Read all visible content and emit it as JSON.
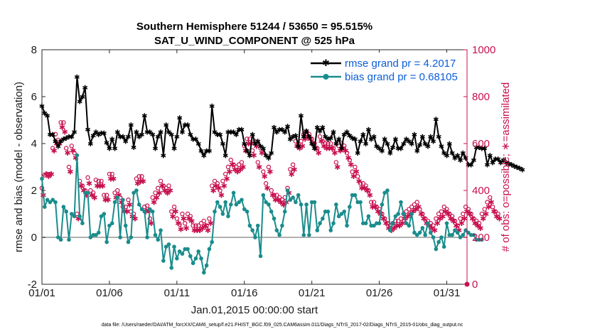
{
  "title_line1": "Southern Hemisphere 51244 / 53650 = 95.515%",
  "title_line2": "SAT_U_WIND_COMPONENT @ 525 hPa",
  "footer": "data file: /Users/raeder/DAI/ATM_forcXX/CAM6_setup/f.e21.FHIST_BGC.f09_025.CAM6assim.011/Diags_NTrS_2017-02/Diags_NTrS_2015-01/obs_diag_output.nc",
  "colors": {
    "rmse": "#000000",
    "bias": "#1a8c8c",
    "obs": "#c8104e",
    "legend_text": "#0b5ed7",
    "zero": "#b0b0b0"
  },
  "chart_data": {
    "type": "line",
    "xlabel": "Jan.01,2015 00:00:00 start",
    "ylabel": "rmse and bias (model - observation)",
    "ylabel_right": "# of obs: o=possible; ∗=assimilated",
    "xlim": [
      0,
      31.5
    ],
    "ylim": [
      -2,
      8
    ],
    "ylim_right": [
      0,
      1000
    ],
    "x_ticks": [
      0,
      5,
      10,
      15,
      20,
      25,
      30
    ],
    "x_ticklabels": [
      "01/01",
      "01/06",
      "01/11",
      "01/16",
      "01/21",
      "01/26",
      "01/31"
    ],
    "y_ticks": [
      -2,
      0,
      2,
      4,
      6,
      8
    ],
    "y_ticklabels": [
      "-2",
      "0",
      "2",
      "4",
      "6",
      "8"
    ],
    "y_right_ticks": [
      0,
      200,
      400,
      600,
      800,
      1000
    ],
    "y_right_ticklabels": [
      "0",
      "200",
      "400",
      "600",
      "800",
      "1000"
    ],
    "series": [
      {
        "name": "rmse grand pr = 4.2017",
        "axis": "left",
        "marker": "*",
        "values": [
          5.6,
          5.3,
          5.2,
          4.4,
          4.4,
          4.1,
          3.9,
          4.1,
          4.2,
          4.25,
          4.3,
          4.3,
          4.5,
          6.85,
          5.8,
          6.0,
          6.4,
          4.6,
          4.0,
          4.35,
          4.5,
          4.4,
          4.45,
          4.45,
          4.05,
          3.8,
          4.2,
          3.8,
          4.5,
          4.3,
          4.3,
          4.1,
          4.3,
          4.8,
          3.85,
          4.5,
          4.3,
          4.4,
          5.2,
          4.5,
          4.5,
          4.4,
          3.8,
          4.3,
          4.5,
          3.5,
          4.8,
          4.5,
          4.4,
          3.8,
          4.3,
          5.1,
          4.5,
          4.8,
          4.8,
          4.4,
          4.2,
          4.2,
          4.0,
          3.7,
          3.5,
          3.7,
          3.7,
          5.6,
          4.5,
          4.4,
          4.4,
          4.0,
          3.5,
          4.5,
          4.5,
          4.5,
          4.4,
          4.6,
          4.6,
          4.0,
          3.7,
          3.5,
          4.4,
          4.0,
          4.1,
          3.9,
          3.8,
          3.5,
          3.4,
          3.6,
          4.7,
          4.5,
          4.6,
          4.6,
          4.5,
          4.75,
          4.2,
          4.3,
          4.35,
          3.9,
          5.2,
          4.3,
          4.55,
          4.3,
          4.0,
          3.8,
          4.7,
          4.55,
          4.7,
          4.3,
          4.2,
          4.25,
          4.5,
          4.0,
          4.2,
          3.8,
          4.4,
          4.5,
          4.35,
          4.25,
          4.2,
          3.6,
          4.1,
          4.4,
          4.0,
          4.6,
          4.2,
          4.3,
          3.9,
          3.8,
          3.7,
          4.2,
          4.0,
          3.6,
          3.85,
          4.2,
          3.8,
          3.8,
          4.0,
          4.2,
          4.1,
          4.0,
          4.4,
          3.7,
          3.95,
          4.3,
          4.0,
          3.9,
          4.3,
          4.1,
          5.05,
          4.3,
          3.9,
          3.6,
          3.5,
          4.0,
          3.6,
          3.4,
          3.5,
          3.3,
          3.6,
          3.4,
          3.1,
          3.1,
          3.3,
          3.85,
          3.85,
          3.8,
          3.8,
          3.1,
          3.5,
          3.2,
          3.35,
          3.35,
          3.2,
          3.3,
          3.2,
          3.15,
          3.1,
          3.05,
          3.0,
          2.95,
          2.9
        ],
        "x_step": 0.2
      },
      {
        "name": "bias grand pr = 0.68105",
        "axis": "left",
        "marker": "o",
        "values": [
          2.5,
          1.3,
          1.6,
          1.5,
          1.6,
          1.5,
          0.0,
          -0.1,
          1.3,
          1.1,
          -0.1,
          1.0,
          0.9,
          3.5,
          0.9,
          0.6,
          1.9,
          1.9,
          0.0,
          0.1,
          0.1,
          0.2,
          0.9,
          1.0,
          -0.2,
          0.5,
          0.6,
          1.5,
          1.7,
          0.0,
          1.6,
          0.5,
          -0.2,
          0.0,
          1.9,
          2.0,
          1.4,
          1.2,
          1.1,
          0.0,
          1.2,
          1.1,
          0.1,
          -0.1,
          0.3,
          -1.0,
          -0.4,
          -0.3,
          -1.3,
          -0.4,
          -0.9,
          -0.6,
          -0.7,
          -0.5,
          -0.5,
          -0.8,
          -1.1,
          -0.9,
          -0.6,
          -0.9,
          -1.5,
          -1.2,
          -0.5,
          -0.2,
          1.1,
          1.5,
          1.3,
          1.0,
          1.5,
          0.9,
          1.4,
          1.9,
          1.4,
          1.5,
          1.6,
          1.2,
          1.1,
          0.5,
          0.3,
          0.0,
          0.5,
          -0.8,
          1.8,
          1.5,
          1.4,
          1.1,
          0.8,
          0.3,
          0.1,
          0.5,
          1.1,
          2.0,
          1.6,
          1.7,
          1.5,
          1.8,
          1.4,
          0.1,
          1.4,
          0.1,
          1.5,
          1.5,
          0.3,
          0.6,
          0.8,
          1.1,
          1.1,
          0.3,
          0.6,
          1.4,
          0.9,
          1.0,
          1.1,
          0.5,
          1.3,
          1.8,
          1.8,
          1.5,
          1.5,
          0.6,
          0.6,
          0.9,
          0.5,
          0.5,
          0.6,
          0.6,
          1.4,
          1.9,
          2.0,
          0.3,
          0.6,
          0.9,
          1.0,
          1.5,
          1.0,
          0.6,
          0.5,
          1.0,
          0.2,
          0.1,
          0.2,
          0.4,
          0.1,
          0.6,
          0.2,
          0.0,
          -0.5,
          -0.2,
          0.0,
          -0.4,
          0.6,
          0.1,
          0.1,
          0.3,
          0.2,
          0.0,
          0.1,
          0.3,
          0.2,
          0.1,
          0.1,
          -0.1,
          -0.1,
          -0.1
        ],
        "x_step": 0.2
      },
      {
        "name": "obs possible",
        "axis": "right",
        "marker": "o",
        "values": [
          410,
          465,
          470,
          470,
          580,
          640,
          615,
          690,
          690,
          580,
          500,
          590,
          560,
          300,
          440,
          420,
          400,
          455,
          400,
          390,
          445,
          440,
          440,
          380,
          380,
          470,
          470,
          390,
          400,
          370,
          330,
          330,
          360,
          310,
          300,
          450,
          460,
          460,
          330,
          335,
          280,
          370,
          390,
          410,
          440,
          420,
          410,
          420,
          310,
          330,
          280,
          255,
          300,
          260,
          300,
          290,
          250,
          250,
          250,
          260,
          270,
          250,
          280,
          420,
          440,
          430,
          400,
          440,
          470,
          500,
          530,
          510,
          500,
          510,
          520,
          590,
          620,
          620,
          570,
          610,
          520,
          580,
          480,
          430,
          500,
          400,
          380,
          380,
          370,
          360,
          370,
          410,
          490,
          510,
          610,
          600,
          610,
          640,
          650,
          640,
          620,
          600,
          580,
          630,
          610,
          600,
          600,
          600,
          580,
          520,
          590,
          600,
          590,
          560,
          530,
          480,
          500,
          460,
          430,
          430,
          420,
          400,
          350,
          350,
          330,
          320,
          300,
          280,
          260,
          250,
          260,
          270,
          270,
          280,
          300,
          310,
          320,
          330,
          340,
          350,
          320,
          300,
          280,
          270,
          260,
          250,
          280,
          300,
          310,
          330,
          320,
          300,
          290,
          270,
          250,
          280,
          300,
          330,
          320,
          300,
          280,
          270,
          260,
          300,
          320,
          350,
          370,
          330,
          310,
          300
        ],
        "x_step": 0.2
      },
      {
        "name": "obs assimilated",
        "axis": "right",
        "marker": "*",
        "values": [
          380,
          470,
          460,
          470,
          570,
          600,
          600,
          670,
          650,
          560,
          480,
          570,
          540,
          280,
          420,
          400,
          380,
          430,
          380,
          370,
          420,
          420,
          420,
          360,
          360,
          450,
          450,
          370,
          380,
          350,
          310,
          310,
          340,
          290,
          280,
          430,
          440,
          440,
          310,
          315,
          260,
          350,
          370,
          390,
          420,
          400,
          390,
          400,
          290,
          310,
          260,
          235,
          280,
          240,
          280,
          270,
          230,
          230,
          230,
          240,
          250,
          230,
          260,
          400,
          420,
          410,
          380,
          420,
          450,
          480,
          510,
          490,
          480,
          490,
          500,
          570,
          600,
          600,
          550,
          590,
          500,
          560,
          460,
          410,
          480,
          380,
          360,
          360,
          350,
          340,
          350,
          390,
          470,
          490,
          590,
          580,
          590,
          620,
          630,
          620,
          600,
          580,
          560,
          610,
          590,
          580,
          580,
          580,
          560,
          500,
          570,
          580,
          570,
          540,
          510,
          460,
          480,
          440,
          410,
          410,
          400,
          380,
          330,
          330,
          310,
          300,
          280,
          260,
          240,
          230,
          240,
          250,
          250,
          260,
          280,
          290,
          300,
          310,
          320,
          330,
          300,
          280,
          260,
          250,
          240,
          230,
          260,
          280,
          290,
          310,
          300,
          280,
          270,
          250,
          230,
          260,
          280,
          310,
          300,
          280,
          260,
          250,
          240,
          280,
          300,
          330,
          350,
          310,
          290,
          280
        ],
        "x_step": 0.2
      }
    ],
    "legend": [
      "rmse grand pr = 4.2017",
      "bias grand pr = 0.68105"
    ],
    "legend_location": "top-right",
    "grid": false
  }
}
